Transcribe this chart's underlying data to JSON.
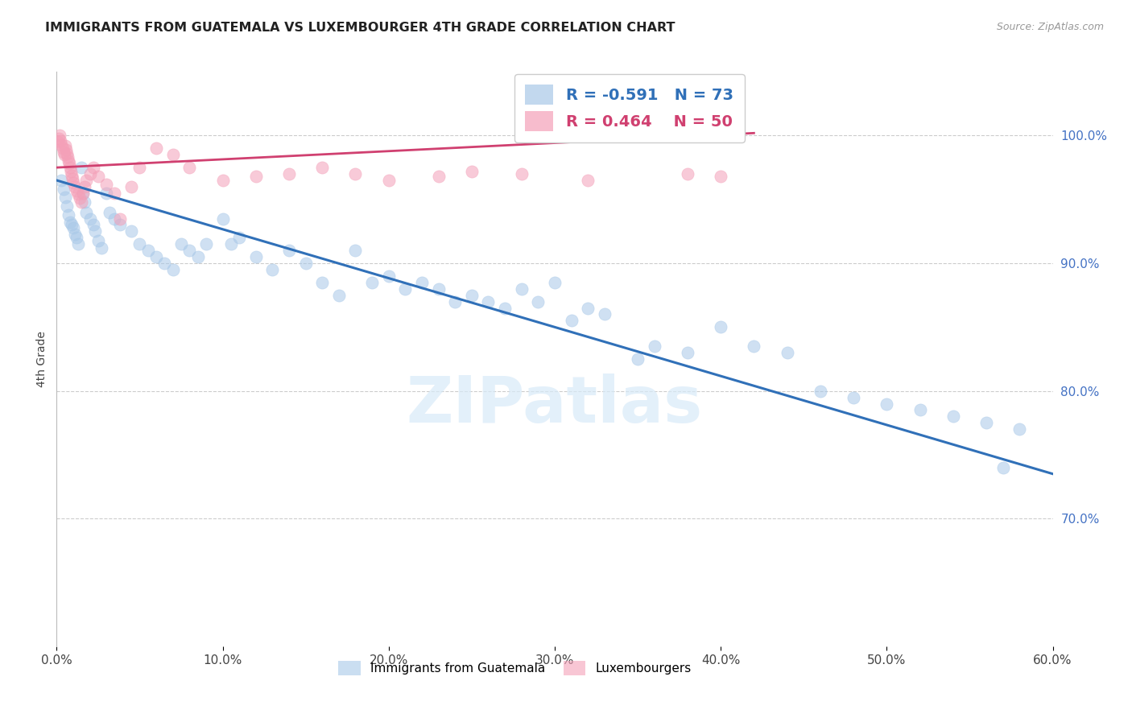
{
  "title": "IMMIGRANTS FROM GUATEMALA VS LUXEMBOURGER 4TH GRADE CORRELATION CHART",
  "source": "Source: ZipAtlas.com",
  "xlabel": "",
  "ylabel": "4th Grade",
  "xlim": [
    0.0,
    60.0
  ],
  "ylim": [
    60.0,
    105.0
  ],
  "xticks": [
    0.0,
    10.0,
    20.0,
    30.0,
    40.0,
    50.0,
    60.0
  ],
  "yticks_right": [
    70.0,
    80.0,
    90.0,
    100.0
  ],
  "blue_color": "#a8c8e8",
  "pink_color": "#f4a0b8",
  "blue_line_color": "#3070b8",
  "pink_line_color": "#d04070",
  "R_blue": -0.591,
  "N_blue": 73,
  "R_pink": 0.464,
  "N_pink": 50,
  "blue_scatter_x": [
    0.3,
    0.4,
    0.5,
    0.6,
    0.7,
    0.8,
    0.9,
    1.0,
    1.1,
    1.2,
    1.3,
    1.5,
    1.6,
    1.7,
    1.8,
    2.0,
    2.2,
    2.3,
    2.5,
    2.7,
    3.0,
    3.2,
    3.5,
    3.8,
    4.5,
    5.0,
    5.5,
    6.0,
    6.5,
    7.0,
    7.5,
    8.0,
    8.5,
    9.0,
    10.0,
    10.5,
    11.0,
    12.0,
    13.0,
    14.0,
    15.0,
    16.0,
    17.0,
    18.0,
    19.0,
    20.0,
    21.0,
    22.0,
    23.0,
    24.0,
    25.0,
    26.0,
    27.0,
    28.0,
    29.0,
    30.0,
    31.0,
    32.0,
    33.0,
    35.0,
    36.0,
    38.0,
    40.0,
    42.0,
    44.0,
    46.0,
    48.0,
    50.0,
    52.0,
    54.0,
    56.0,
    58.0,
    57.0
  ],
  "blue_scatter_y": [
    96.5,
    95.8,
    95.2,
    94.5,
    93.8,
    93.2,
    93.0,
    92.8,
    92.3,
    92.0,
    91.5,
    97.5,
    95.5,
    94.8,
    94.0,
    93.5,
    93.0,
    92.5,
    91.8,
    91.2,
    95.5,
    94.0,
    93.5,
    93.0,
    92.5,
    91.5,
    91.0,
    90.5,
    90.0,
    89.5,
    91.5,
    91.0,
    90.5,
    91.5,
    93.5,
    91.5,
    92.0,
    90.5,
    89.5,
    91.0,
    90.0,
    88.5,
    87.5,
    91.0,
    88.5,
    89.0,
    88.0,
    88.5,
    88.0,
    87.0,
    87.5,
    87.0,
    86.5,
    88.0,
    87.0,
    88.5,
    85.5,
    86.5,
    86.0,
    82.5,
    83.5,
    83.0,
    85.0,
    83.5,
    83.0,
    80.0,
    79.5,
    79.0,
    78.5,
    78.0,
    77.5,
    77.0,
    74.0
  ],
  "pink_scatter_x": [
    0.1,
    0.15,
    0.2,
    0.25,
    0.3,
    0.35,
    0.4,
    0.45,
    0.5,
    0.55,
    0.6,
    0.65,
    0.7,
    0.75,
    0.8,
    0.85,
    0.9,
    0.95,
    1.0,
    1.1,
    1.2,
    1.3,
    1.4,
    1.5,
    1.6,
    1.7,
    1.8,
    2.0,
    2.2,
    2.5,
    3.0,
    3.5,
    3.8,
    4.5,
    5.0,
    6.0,
    7.0,
    8.0,
    10.0,
    12.0,
    14.0,
    16.0,
    18.0,
    20.0,
    23.0,
    25.0,
    28.0,
    32.0,
    38.0,
    40.0
  ],
  "pink_scatter_y": [
    99.5,
    99.8,
    100.0,
    99.6,
    99.3,
    99.0,
    98.7,
    98.5,
    99.2,
    98.9,
    98.6,
    98.3,
    98.0,
    97.8,
    97.5,
    97.2,
    96.9,
    96.6,
    96.3,
    96.0,
    95.7,
    95.4,
    95.1,
    94.8,
    95.5,
    96.0,
    96.5,
    97.0,
    97.5,
    96.8,
    96.2,
    95.5,
    93.5,
    96.0,
    97.5,
    99.0,
    98.5,
    97.5,
    96.5,
    96.8,
    97.0,
    97.5,
    97.0,
    96.5,
    96.8,
    97.2,
    97.0,
    96.5,
    97.0,
    96.8
  ],
  "blue_line_x": [
    0.0,
    60.0
  ],
  "blue_line_y": [
    96.5,
    73.5
  ],
  "pink_line_x": [
    0.0,
    42.0
  ],
  "pink_line_y": [
    97.5,
    100.2
  ],
  "watermark": "ZIPatlas",
  "background_color": "#ffffff",
  "grid_color": "#cccccc"
}
